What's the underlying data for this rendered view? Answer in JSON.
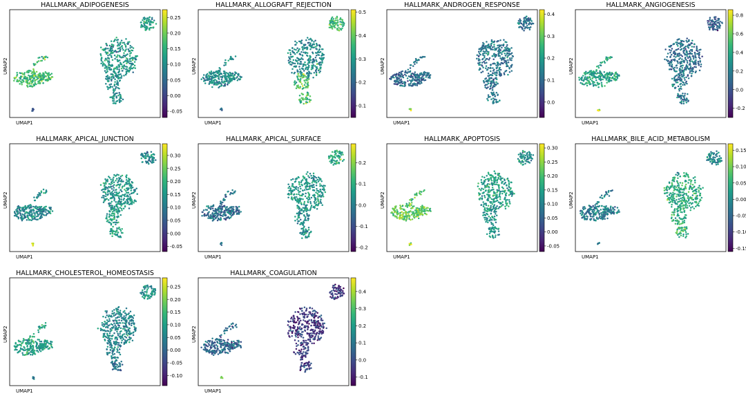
{
  "figure": {
    "xlabel": "UMAP1",
    "ylabel": "UMAP2",
    "colormap": "viridis"
  },
  "chart_data": [
    {
      "type": "scatter",
      "title": "HALLMARK_ADIPOGENESIS",
      "xlabel": "UMAP1",
      "ylabel": "UMAP2",
      "colorbar": {
        "range": [
          -0.07,
          0.275
        ],
        "ticks": [
          "0.25",
          "0.20",
          "0.15",
          "0.10",
          "0.05",
          "0.00",
          "-0.05"
        ]
      },
      "cluster_levels": {
        "top": 0.12,
        "main": 0.11,
        "tail": 0.1,
        "left": 0.17,
        "arm": 0.16,
        "dot": 0.04
      }
    },
    {
      "type": "scatter",
      "title": "HALLMARK_ALLOGRAFT_REJECTION",
      "xlabel": "UMAP1",
      "ylabel": "UMAP2",
      "colorbar": {
        "range": [
          0.05,
          0.51
        ],
        "ticks": [
          "0.5",
          "0.4",
          "0.3",
          "0.2",
          "0.1"
        ]
      },
      "cluster_levels": {
        "top": 0.36,
        "main": 0.27,
        "tail": 0.38,
        "left": 0.27,
        "arm": 0.28,
        "dot": 0.19
      }
    },
    {
      "type": "scatter",
      "title": "HALLMARK_ANDROGEN_RESPONSE",
      "xlabel": "UMAP1",
      "ylabel": "UMAP2",
      "colorbar": {
        "range": [
          -0.07,
          0.42
        ],
        "ticks": [
          "0.4",
          "0.3",
          "0.2",
          "0.1",
          "0.0"
        ]
      },
      "cluster_levels": {
        "top": 0.12,
        "main": 0.13,
        "tail": 0.12,
        "left": 0.1,
        "arm": 0.12,
        "dot": 0.35
      }
    },
    {
      "type": "scatter",
      "title": "HALLMARK_ANGIOGENESIS",
      "xlabel": "UMAP1",
      "ylabel": "UMAP2",
      "colorbar": {
        "range": [
          -0.3,
          0.86
        ],
        "ticks": [
          "0.8",
          "0.6",
          "0.4",
          "0.2",
          "0.0",
          "-0.2"
        ]
      },
      "cluster_levels": {
        "top": 0.05,
        "main": 0.12,
        "tail": 0.15,
        "left": 0.38,
        "arm": 0.38,
        "dot": 0.75
      }
    },
    {
      "type": "scatter",
      "title": "HALLMARK_APICAL_JUNCTION",
      "xlabel": "UMAP1",
      "ylabel": "UMAP2",
      "colorbar": {
        "range": [
          -0.07,
          0.345
        ],
        "ticks": [
          "0.30",
          "0.25",
          "0.20",
          "0.15",
          "0.10",
          "0.05",
          "0.00",
          "-0.05"
        ]
      },
      "cluster_levels": {
        "top": 0.12,
        "main": 0.15,
        "tail": 0.17,
        "left": 0.12,
        "arm": 0.13,
        "dot": 0.3
      }
    },
    {
      "type": "scatter",
      "title": "HALLMARK_APICAL_SURFACE",
      "xlabel": "UMAP1",
      "ylabel": "UMAP2",
      "colorbar": {
        "range": [
          -0.22,
          0.29
        ],
        "ticks": [
          "0.2",
          "0.1",
          "0.0",
          "-0.1",
          "-0.2"
        ]
      },
      "cluster_levels": {
        "top": 0.1,
        "main": 0.05,
        "tail": 0.03,
        "left": -0.03,
        "arm": 0.0,
        "dot": -0.02
      }
    },
    {
      "type": "scatter",
      "title": "HALLMARK_APOPTOSIS",
      "xlabel": "UMAP1",
      "ylabel": "UMAP2",
      "colorbar": {
        "range": [
          -0.07,
          0.315
        ],
        "ticks": [
          "0.30",
          "0.25",
          "0.20",
          "0.15",
          "0.10",
          "0.05",
          "0.00",
          "-0.05"
        ]
      },
      "cluster_levels": {
        "top": 0.12,
        "main": 0.15,
        "tail": 0.13,
        "left": 0.22,
        "arm": 0.2,
        "dot": 0.28
      }
    },
    {
      "type": "scatter",
      "title": "HALLMARK_BILE_ACID_METABOLISM",
      "xlabel": "UMAP1",
      "ylabel": "UMAP2",
      "colorbar": {
        "range": [
          -0.16,
          0.17
        ],
        "ticks": [
          "0.15",
          "0.10",
          "0.05",
          "0.00",
          "-0.05",
          "-0.10",
          "-0.15"
        ]
      },
      "cluster_levels": {
        "top": 0.0,
        "main": 0.04,
        "tail": 0.05,
        "left": -0.02,
        "arm": -0.01,
        "dot": 0.0
      }
    },
    {
      "type": "scatter",
      "title": "HALLMARK_CHOLESTEROL_HOMEOSTASIS",
      "xlabel": "UMAP1",
      "ylabel": "UMAP2",
      "colorbar": {
        "range": [
          -0.14,
          0.285
        ],
        "ticks": [
          "0.25",
          "0.20",
          "0.15",
          "0.10",
          "0.05",
          "0.00",
          "-0.05",
          "-0.10"
        ]
      },
      "cluster_levels": {
        "top": 0.08,
        "main": 0.06,
        "tail": 0.04,
        "left": 0.1,
        "arm": 0.1,
        "dot": 0.05
      }
    },
    {
      "type": "scatter",
      "title": "HALLMARK_COAGULATION",
      "xlabel": "UMAP1",
      "ylabel": "UMAP2",
      "colorbar": {
        "range": [
          -0.15,
          0.48
        ],
        "ticks": [
          "0.4",
          "0.3",
          "0.2",
          "0.1",
          "0.0",
          "-0.1"
        ]
      },
      "cluster_levels": {
        "top": -0.05,
        "main": -0.04,
        "tail": -0.03,
        "left": 0.06,
        "arm": 0.06,
        "dot": 0.35
      }
    }
  ]
}
